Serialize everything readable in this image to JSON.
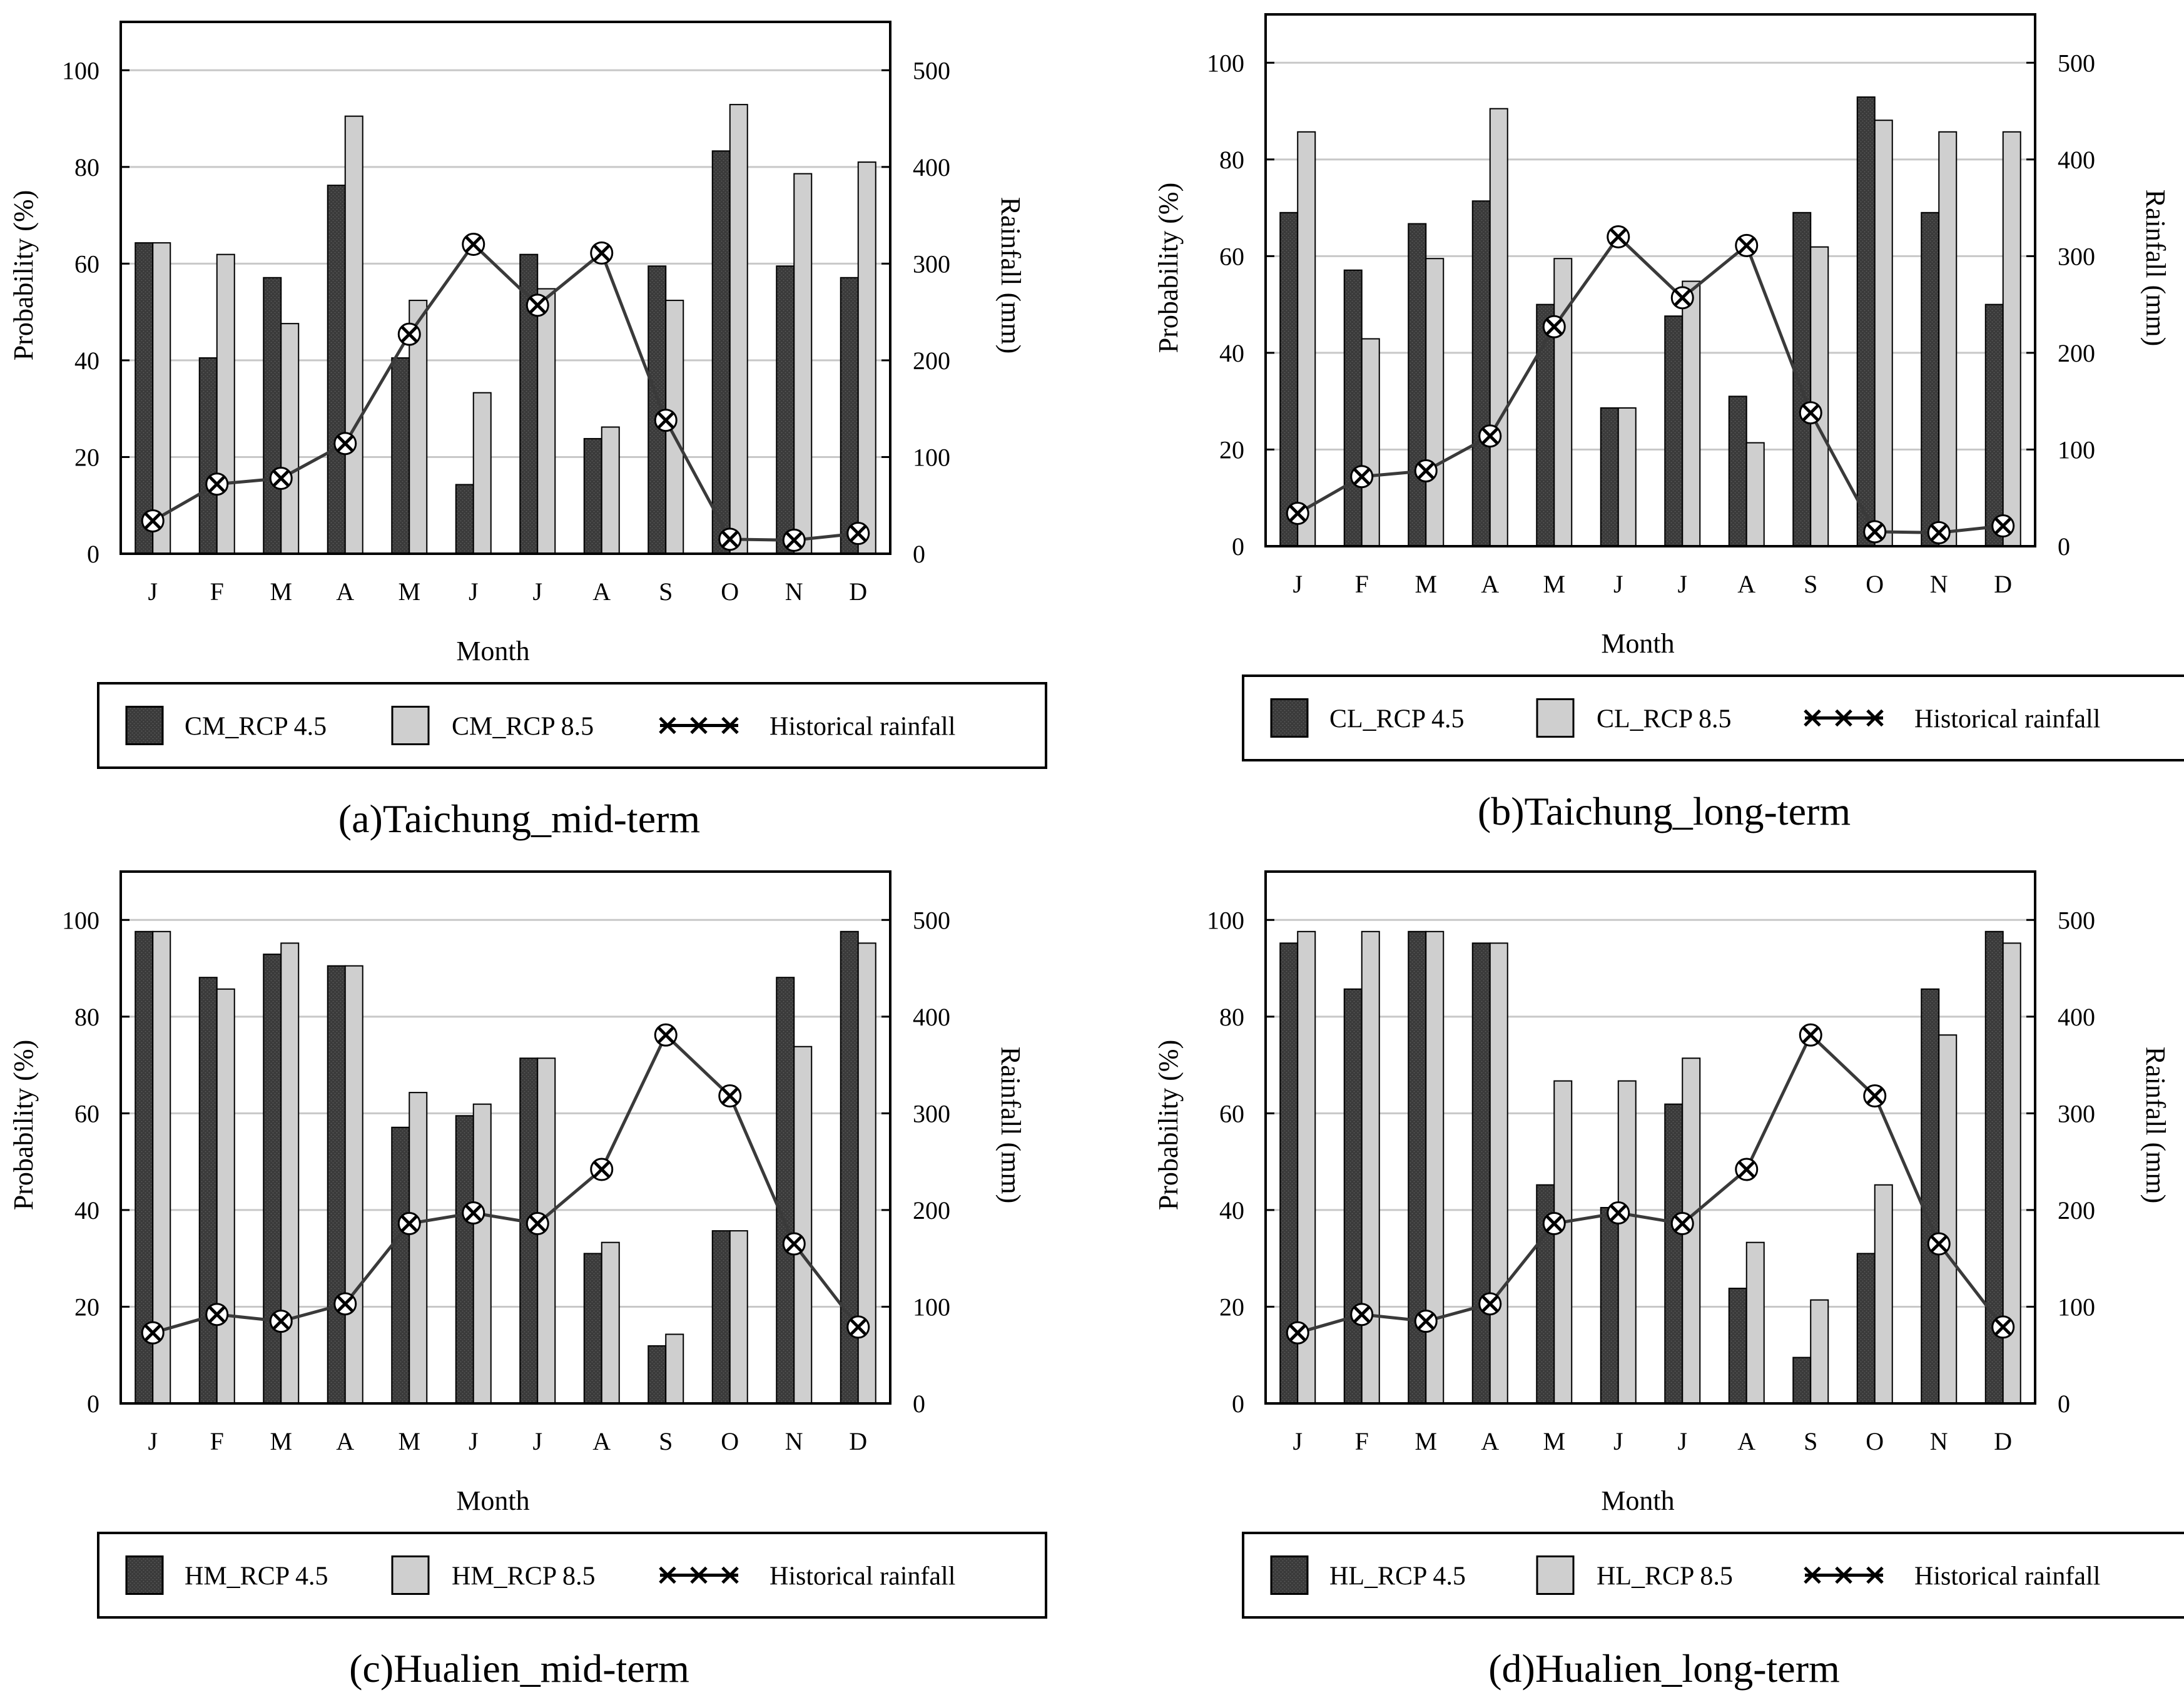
{
  "figure": {
    "months": [
      "J",
      "F",
      "M",
      "A",
      "M",
      "J",
      "J",
      "A",
      "S",
      "O",
      "N",
      "D"
    ],
    "colors": {
      "rcp45": "#3a3a3a",
      "rcp85": "#cfcfcf",
      "line": "#3a3a3a",
      "grid": "#c8c8c8"
    }
  },
  "chart_data": [
    {
      "type": "bar",
      "caption": "(a)Taichung_mid-term",
      "xlabel": "Month",
      "ylabel": "Probability (%)",
      "y2label": "Rainfall (mm)",
      "ylim": [
        0,
        110
      ],
      "y2lim": [
        0,
        550
      ],
      "yticks": [
        "0",
        "20",
        "40",
        "60",
        "80",
        "100"
      ],
      "y2ticks": [
        "0",
        "100",
        "200",
        "300",
        "400",
        "500"
      ],
      "categories": [
        "J",
        "F",
        "M",
        "A",
        "M",
        "J",
        "J",
        "A",
        "S",
        "O",
        "N",
        "D"
      ],
      "series": [
        {
          "name": "CM_RCP 4.5",
          "kind": "bar",
          "values": [
            64.3,
            40.5,
            57.1,
            76.2,
            40.5,
            14.3,
            61.9,
            23.8,
            59.5,
            83.3,
            59.5,
            57.1
          ]
        },
        {
          "name": "CM_RCP 8.5",
          "kind": "bar",
          "values": [
            64.3,
            61.9,
            47.6,
            90.5,
            52.4,
            33.3,
            54.8,
            26.2,
            52.4,
            92.9,
            78.6,
            81.0
          ]
        },
        {
          "name": "Historical rainfall",
          "kind": "line",
          "axis": "right",
          "values": [
            34,
            72,
            78,
            114,
            227,
            320,
            257,
            311,
            138,
            15,
            14,
            21
          ]
        }
      ]
    },
    {
      "type": "bar",
      "caption": "(b)Taichung_long-term",
      "xlabel": "Month",
      "ylabel": "Probability (%)",
      "y2label": "Rainfall (mm)",
      "ylim": [
        0,
        110
      ],
      "y2lim": [
        0,
        550
      ],
      "yticks": [
        "0",
        "20",
        "40",
        "60",
        "80",
        "100"
      ],
      "y2ticks": [
        "0",
        "100",
        "200",
        "300",
        "400",
        "500"
      ],
      "categories": [
        "J",
        "F",
        "M",
        "A",
        "M",
        "J",
        "J",
        "A",
        "S",
        "O",
        "N",
        "D"
      ],
      "series": [
        {
          "name": "CL_RCP 4.5",
          "kind": "bar",
          "values": [
            69.0,
            57.1,
            66.7,
            71.4,
            50.0,
            28.6,
            47.6,
            31.0,
            69.0,
            92.9,
            69.0,
            50.0
          ]
        },
        {
          "name": "CL_RCP 8.5",
          "kind": "bar",
          "values": [
            85.7,
            42.9,
            59.5,
            90.5,
            59.5,
            28.6,
            54.8,
            21.4,
            61.9,
            88.1,
            85.7,
            85.7
          ]
        },
        {
          "name": "Historical rainfall",
          "kind": "line",
          "axis": "right",
          "values": [
            34,
            72,
            78,
            114,
            227,
            320,
            257,
            311,
            138,
            15,
            14,
            21
          ]
        }
      ]
    },
    {
      "type": "bar",
      "caption": "(c)Hualien_mid-term",
      "xlabel": "Month",
      "ylabel": "Probability (%)",
      "y2label": "Rainfall (mm)",
      "ylim": [
        0,
        110
      ],
      "y2lim": [
        0,
        550
      ],
      "yticks": [
        "0",
        "20",
        "40",
        "60",
        "80",
        "100"
      ],
      "y2ticks": [
        "0",
        "100",
        "200",
        "300",
        "400",
        "500"
      ],
      "categories": [
        "J",
        "F",
        "M",
        "A",
        "M",
        "J",
        "J",
        "A",
        "S",
        "O",
        "N",
        "D"
      ],
      "series": [
        {
          "name": "HM_RCP 4.5",
          "kind": "bar",
          "values": [
            97.6,
            88.1,
            92.9,
            90.5,
            57.1,
            59.5,
            71.4,
            31.0,
            11.9,
            35.7,
            88.1,
            97.6
          ]
        },
        {
          "name": "HM_RCP 8.5",
          "kind": "bar",
          "values": [
            97.6,
            85.7,
            95.2,
            90.5,
            64.3,
            61.9,
            71.4,
            33.3,
            14.3,
            35.7,
            73.8,
            95.2
          ]
        },
        {
          "name": "Historical rainfall",
          "kind": "line",
          "axis": "right",
          "values": [
            73,
            92,
            85,
            103,
            186,
            197,
            186,
            242,
            381,
            318,
            165,
            79
          ]
        }
      ]
    },
    {
      "type": "bar",
      "caption": "(d)Hualien_long-term",
      "xlabel": "Month",
      "ylabel": "Probability (%)",
      "y2label": "Rainfall (mm)",
      "ylim": [
        0,
        110
      ],
      "y2lim": [
        0,
        550
      ],
      "yticks": [
        "0",
        "20",
        "40",
        "60",
        "80",
        "100"
      ],
      "y2ticks": [
        "0",
        "100",
        "200",
        "300",
        "400",
        "500"
      ],
      "categories": [
        "J",
        "F",
        "M",
        "A",
        "M",
        "J",
        "J",
        "A",
        "S",
        "O",
        "N",
        "D"
      ],
      "series": [
        {
          "name": "HL_RCP 4.5",
          "kind": "bar",
          "values": [
            95.2,
            85.7,
            97.6,
            95.2,
            45.2,
            40.5,
            61.9,
            23.8,
            9.5,
            31.0,
            85.7,
            97.6
          ]
        },
        {
          "name": "HL_RCP 8.5",
          "kind": "bar",
          "values": [
            97.6,
            97.6,
            97.6,
            95.2,
            66.7,
            66.7,
            71.4,
            33.3,
            21.4,
            45.2,
            76.2,
            95.2
          ]
        },
        {
          "name": "Historical rainfall",
          "kind": "line",
          "axis": "right",
          "values": [
            73,
            92,
            85,
            103,
            186,
            197,
            186,
            242,
            381,
            318,
            165,
            79
          ]
        }
      ]
    }
  ]
}
